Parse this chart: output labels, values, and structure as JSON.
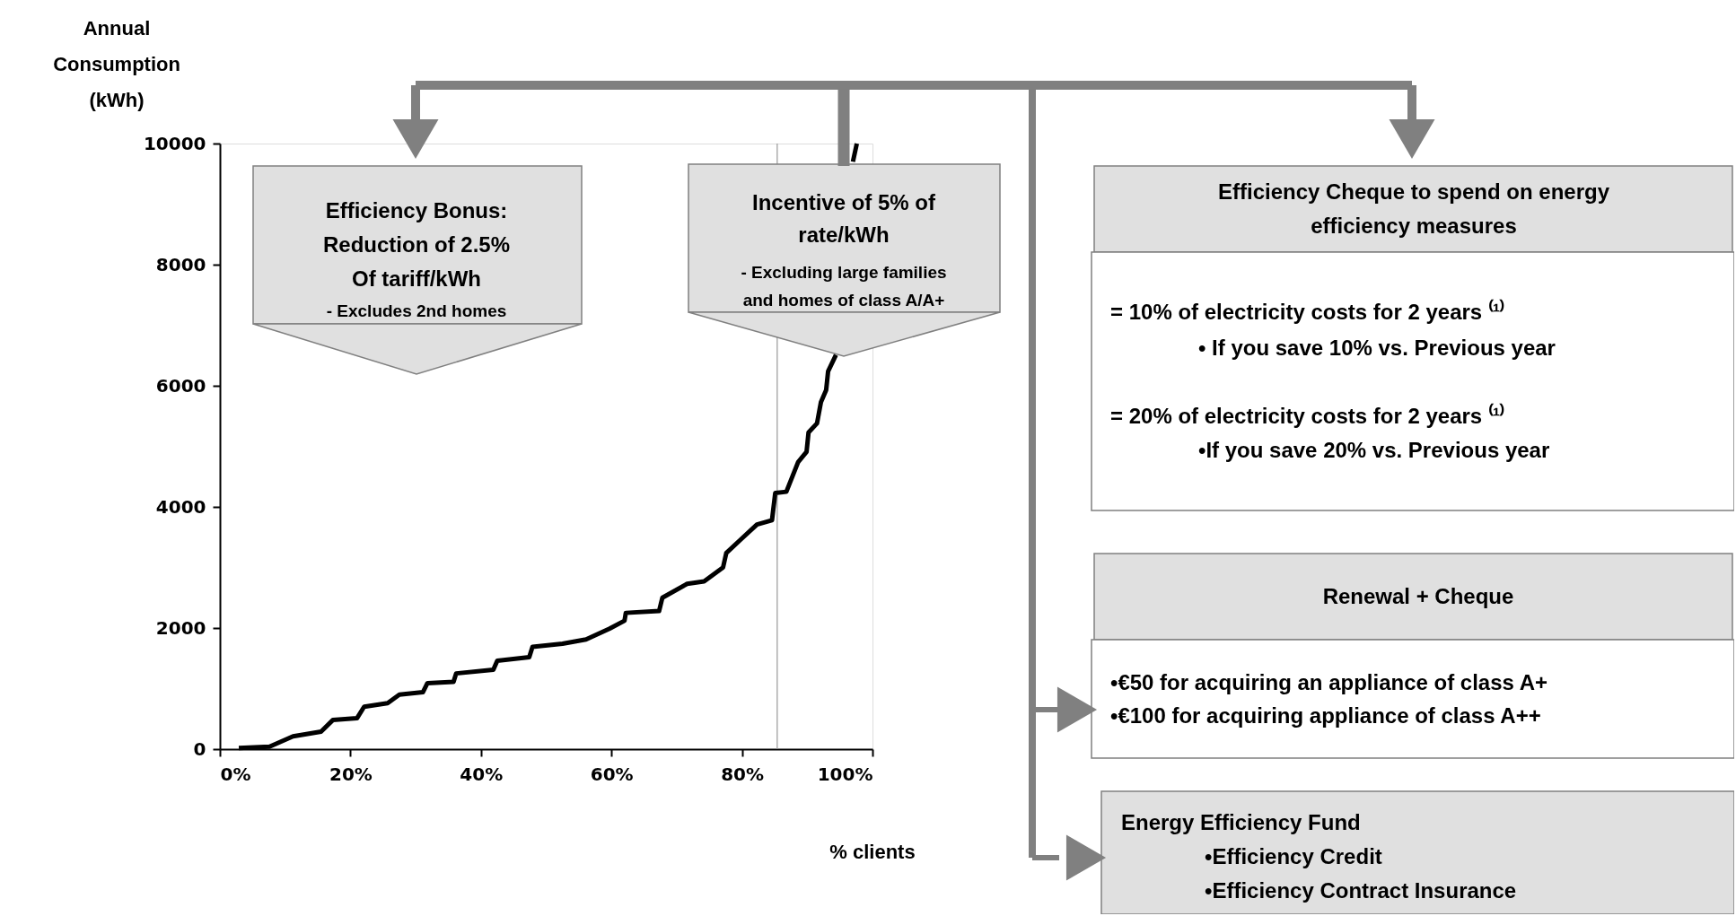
{
  "chart_data": {
    "type": "line",
    "x": [
      2.9,
      7.6,
      11.2,
      15.5,
      17.3,
      21.0,
      22.1,
      25.7,
      27.5,
      31.1,
      31.8,
      35.8,
      36.2,
      41.9,
      42.5,
      47.4,
      47.9,
      52.5,
      56.1,
      59.7,
      62.0,
      62.2,
      67.3,
      67.8,
      71.6,
      74.2,
      77.1,
      77.6,
      79.9,
      82.3,
      84.6,
      85.1,
      86.8,
      88.6,
      89.9,
      90.2,
      91.5,
      92.1,
      92.9,
      93.2,
      94.4,
      95.5,
      97.0,
      97.6
    ],
    "series": [
      {
        "color": "#000000",
        "values": [
          20,
          40,
          210,
          290,
          480,
          510,
          700,
          760,
          900,
          940,
          1090,
          1110,
          1250,
          1310,
          1460,
          1520,
          1690,
          1740,
          1810,
          1990,
          2120,
          2250,
          2280,
          2500,
          2730,
          2770,
          3000,
          3240,
          3470,
          3710,
          3780,
          4230,
          4250,
          4740,
          4910,
          5230,
          5380,
          5730,
          5930,
          6240,
          6510,
          null,
          9700,
          10000
        ]
      }
    ],
    "xlim": [
      0,
      100
    ],
    "xticks": [
      {
        "value": 0,
        "label": "0%"
      },
      {
        "value": 20,
        "label": "20%"
      },
      {
        "value": 40,
        "label": "40%"
      },
      {
        "value": 60,
        "label": "60%"
      },
      {
        "value": 80,
        "label": "80%"
      },
      {
        "value": 100,
        "label": "100%"
      }
    ],
    "ylim": [
      0,
      10000
    ],
    "yticks": [
      0,
      2000,
      4000,
      6000,
      8000,
      10000
    ],
    "xlabel": "% clients",
    "ylabel": "Annual Consumption (kWh)",
    "grid": false,
    "ref_lines": [
      {
        "axis": "x",
        "value": 85.4,
        "color": "#999999"
      }
    ],
    "annotations": [
      "Efficiency Bonus:",
      "Reduction of 2.5%",
      "Of tariff/kWh",
      "- Excludes 2nd homes",
      "Incentive of 5% of",
      "rate/kWh",
      "- Excluding large families",
      "and homes of class A/A+",
      "Efficiency Cheque to spend on energy",
      "efficiency measures",
      "= 10% of electricity costs for 2 years ⁽¹⁾",
      "• If you save 10% vs. Previous year",
      "= 20% of electricity costs for 2 years ⁽¹⁾",
      "•If you save 20% vs. Previous year",
      "Renewal + Cheque",
      "•€50 for acquiring an appliance of class A+",
      "•€100 for acquiring appliance of class A++",
      "Energy Efficiency Fund",
      "•Efficiency Credit",
      "•Efficiency Contract Insurance"
    ]
  }
}
